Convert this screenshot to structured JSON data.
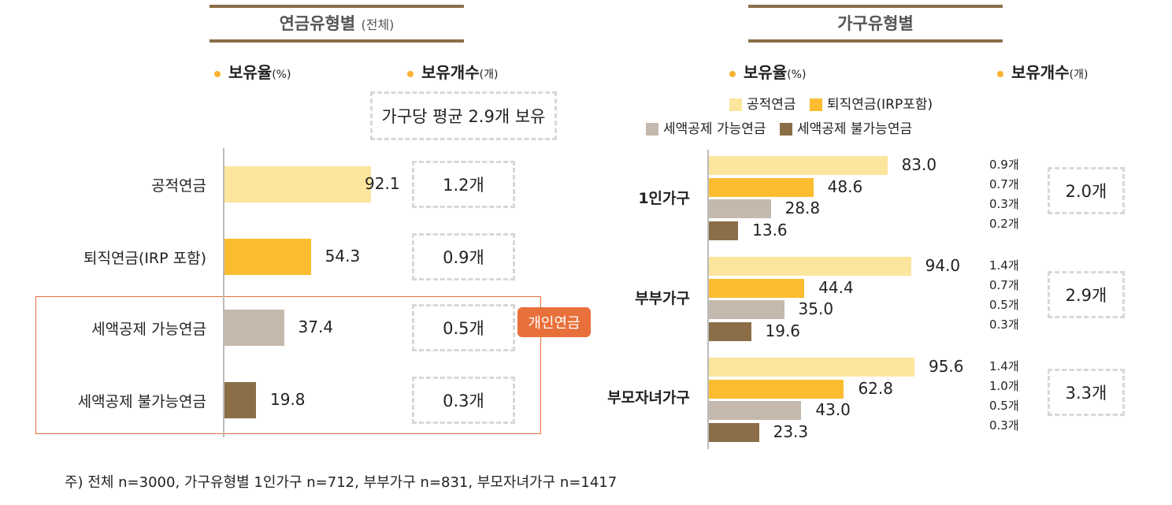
{
  "colors": {
    "public": "#FCE59C",
    "retire": "#FBBD2F",
    "deductible": "#C5B9AD",
    "nondeductible": "#8B6E48",
    "accent": "#E8703A"
  },
  "left": {
    "title": "연금유형별",
    "title_note": "(전체)",
    "rate_label": "보유율",
    "rate_unit": "(%)",
    "count_label": "보유개수",
    "count_unit": "(개)",
    "avg_note": "가구당 평균 2.9개 보유",
    "badge": "개인연금"
  },
  "right": {
    "title": "가구유형별",
    "rate_label": "보유율",
    "rate_unit": "(%)",
    "count_label": "보유개수",
    "count_unit": "(개)"
  },
  "footnote": "주) 전체 n=3000, 가구유형별 1인가구 n=712, 부부가구 n=831, 부모자녀가구 n=1417",
  "chart_data": [
    {
      "type": "bar",
      "orientation": "horizontal",
      "categories": [
        "공적연금",
        "퇴직연금(IRP 포함)",
        "세액공제 가능연금",
        "세액공제 불가능연금"
      ],
      "values": [
        92.1,
        54.3,
        37.4,
        19.8
      ],
      "value_labels": [
        "92.1",
        "54.3",
        "37.4",
        "19.8"
      ],
      "counts": [
        "1.2개",
        "0.9개",
        "0.5개",
        "0.3개"
      ],
      "xlim": [
        0,
        100
      ]
    },
    {
      "type": "bar",
      "orientation": "horizontal",
      "categories": [
        "1인가구",
        "부부가구",
        "부모자녀가구"
      ],
      "series": [
        {
          "name": "공적연금",
          "values": [
            83.0,
            94.0,
            95.6
          ],
          "labels": [
            "83.0",
            "94.0",
            "95.6"
          ],
          "counts": [
            "0.9개",
            "1.4개",
            "1.4개"
          ]
        },
        {
          "name": "퇴직연금(IRP포함)",
          "values": [
            48.6,
            44.4,
            62.8
          ],
          "labels": [
            "48.6",
            "44.4",
            "62.8"
          ],
          "counts": [
            "0.7개",
            "0.7개",
            "1.0개"
          ]
        },
        {
          "name": "세액공제 가능연금",
          "values": [
            28.8,
            35.0,
            43.0
          ],
          "labels": [
            "28.8",
            "35.0",
            "43.0"
          ],
          "counts": [
            "0.3개",
            "0.5개",
            "0.5개"
          ]
        },
        {
          "name": "세액공제 불가능연금",
          "values": [
            13.6,
            19.6,
            23.3
          ],
          "labels": [
            "13.6",
            "19.6",
            "23.3"
          ],
          "counts": [
            "0.2개",
            "0.3개",
            "0.3개"
          ]
        }
      ],
      "totals": [
        "2.0개",
        "2.9개",
        "3.3개"
      ],
      "legend": "top",
      "xlim": [
        0,
        100
      ]
    }
  ]
}
